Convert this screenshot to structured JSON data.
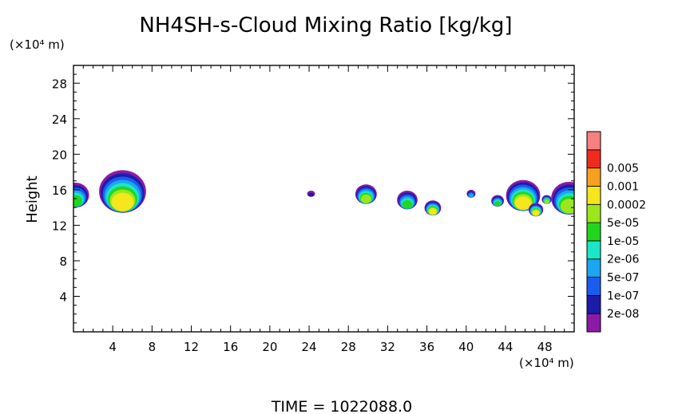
{
  "chart_data": {
    "type": "heatmap",
    "title": "NH4SH-s-Cloud Mixing Ratio [kg/kg]",
    "ylabel": "Height",
    "xlabel": "",
    "y_unit": "(×10⁴ m)",
    "x_unit": "(×10⁴ m)",
    "footer": "TIME = 1022088.0",
    "xlim": [
      0,
      51
    ],
    "ylim": [
      0,
      30
    ],
    "x_ticks": [
      4,
      8,
      12,
      16,
      20,
      24,
      28,
      32,
      36,
      40,
      44,
      48
    ],
    "y_ticks": [
      4,
      8,
      12,
      16,
      20,
      24,
      28
    ],
    "grid": false,
    "colorbar": {
      "placement": "right",
      "levels": [
        "2e-08",
        "1e-07",
        "5e-07",
        "2e-06",
        "1e-05",
        "5e-05",
        "0.0002",
        "0.001",
        "0.005"
      ],
      "colors": [
        "#8a1aa8",
        "#1c1ca8",
        "#1a5cf0",
        "#1aa6f0",
        "#1ae6c8",
        "#22d61e",
        "#9ce61e",
        "#f5e61e",
        "#f5a01e",
        "#f02a1e",
        "#f58080"
      ]
    },
    "clouds": [
      {
        "x": 0.2,
        "y_base": 14.0,
        "y_top": 16.8,
        "peak": "1e-05"
      },
      {
        "x": 5.0,
        "y_base": 13.4,
        "y_top": 18.2,
        "peak": "0.0002"
      },
      {
        "x": 24.2,
        "y_base": 15.2,
        "y_top": 15.9,
        "peak": "2e-08"
      },
      {
        "x": 29.8,
        "y_base": 14.4,
        "y_top": 16.6,
        "peak": "5e-05"
      },
      {
        "x": 34.0,
        "y_base": 13.8,
        "y_top": 15.9,
        "peak": "1e-05"
      },
      {
        "x": 36.6,
        "y_base": 13.1,
        "y_top": 14.8,
        "peak": "0.0002"
      },
      {
        "x": 40.5,
        "y_base": 15.1,
        "y_top": 16.0,
        "peak": "5e-07"
      },
      {
        "x": 43.2,
        "y_base": 14.1,
        "y_top": 15.4,
        "peak": "1e-05"
      },
      {
        "x": 45.8,
        "y_base": 13.6,
        "y_top": 17.1,
        "peak": "0.0002"
      },
      {
        "x": 47.1,
        "y_base": 13.0,
        "y_top": 14.5,
        "peak": "0.0002"
      },
      {
        "x": 48.2,
        "y_base": 14.4,
        "y_top": 15.4,
        "peak": "5e-05"
      },
      {
        "x": 50.5,
        "y_base": 13.2,
        "y_top": 16.9,
        "peak": "5e-05"
      }
    ]
  }
}
